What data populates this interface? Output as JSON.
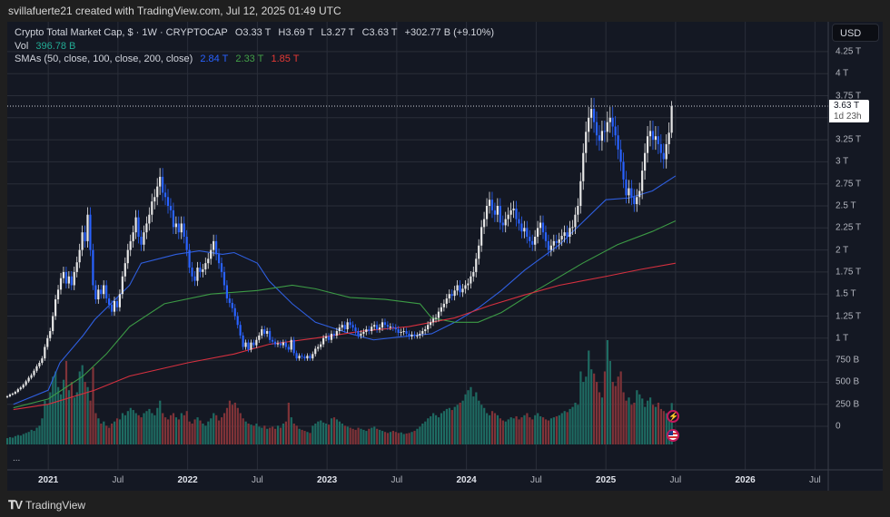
{
  "header": {
    "attribution": "svillafuerte21 created with TradingView.com, Jul 12, 2025 01:49 UTC"
  },
  "legend": {
    "symbol": "Crypto Total Market Cap, $ · 1W · CRYPTOCAP",
    "open": "O3.33 T",
    "high": "H3.69 T",
    "low": "L3.27 T",
    "close": "C3.63 T",
    "change": "+302.77 B (+9.10%)",
    "vol_label": "Vol",
    "vol_value": "396.78 B",
    "sma_label": "SMAs (50, close, 100, close, 200, close)",
    "sma50": "2.84 T",
    "sma100": "2.33 T",
    "sma200": "1.85 T"
  },
  "currency_button": "USD",
  "price_label": {
    "value": "3.63 T",
    "countdown": "1d 23h"
  },
  "pane_menu": "...",
  "brand": "TradingView",
  "colors": {
    "up": "#e6e6e6",
    "down": "#2962ff",
    "vol_up": "#1e6b62",
    "vol_down": "#7f3338",
    "sma50": "#2f5fe0",
    "sma100": "#3c9a45",
    "sma200": "#d6303f",
    "background": "#141823",
    "grid": "#2a2e39"
  },
  "icons": {
    "event_1": "lightning-icon",
    "event_2": "us-flag-icon"
  },
  "chart_data": {
    "type": "candlestick",
    "interval": "1W",
    "y_axis_ticks": [
      "4.25 T",
      "4 T",
      "3.75 T",
      "3.25 T",
      "3 T",
      "2.75 T",
      "2.5 T",
      "2.25 T",
      "2 T",
      "1.75 T",
      "1.5 T",
      "1.25 T",
      "1 T",
      "750 B",
      "500 B",
      "250 B",
      "0"
    ],
    "y_axis_tick_values": [
      4.25,
      4,
      3.75,
      3.25,
      3,
      2.75,
      2.5,
      2.25,
      2,
      1.75,
      1.5,
      1.25,
      1,
      0.75,
      0.5,
      0.25,
      0
    ],
    "x_axis_ticks": [
      "2021",
      "Jul",
      "2022",
      "Jul",
      "2023",
      "Jul",
      "2024",
      "Jul",
      "2025",
      "Jul",
      "2026",
      "Jul"
    ],
    "x_axis_tick_dates": [
      "2021-01",
      "2021-07",
      "2022-01",
      "2022-07",
      "2023-01",
      "2023-07",
      "2024-01",
      "2024-07",
      "2025-01",
      "2025-07",
      "2026-01",
      "2026-07"
    ],
    "units": "T USD",
    "weekly_closes": [
      0.34,
      0.36,
      0.37,
      0.39,
      0.42,
      0.44,
      0.47,
      0.51,
      0.55,
      0.58,
      0.63,
      0.68,
      0.72,
      0.77,
      0.9,
      1.0,
      1.08,
      1.25,
      1.44,
      1.55,
      1.68,
      1.75,
      1.62,
      1.7,
      1.6,
      1.75,
      1.86,
      2.0,
      2.2,
      2.1,
      2.4,
      2.0,
      1.6,
      1.44,
      1.55,
      1.5,
      1.6,
      1.45,
      1.38,
      1.3,
      1.42,
      1.35,
      1.5,
      1.7,
      1.85,
      2.0,
      2.1,
      2.2,
      2.37,
      2.15,
      2.06,
      2.2,
      2.3,
      2.4,
      2.55,
      2.6,
      2.72,
      2.83,
      2.65,
      2.6,
      2.5,
      2.45,
      2.26,
      2.3,
      2.2,
      2.3,
      2.15,
      2.0,
      1.8,
      1.7,
      1.65,
      1.8,
      1.75,
      1.78,
      1.85,
      1.9,
      2.0,
      2.1,
      1.95,
      1.85,
      1.75,
      1.6,
      1.45,
      1.4,
      1.34,
      1.25,
      1.15,
      1.03,
      0.9,
      0.95,
      0.87,
      0.95,
      0.92,
      0.98,
      1.03,
      1.1,
      1.05,
      1.08,
      0.98,
      0.96,
      0.93,
      0.94,
      0.92,
      0.95,
      0.9,
      0.87,
      0.98,
      0.83,
      0.77,
      0.8,
      0.79,
      0.77,
      0.8,
      0.77,
      0.82,
      0.88,
      0.9,
      0.93,
      1.0,
      1.02,
      0.98,
      1.05,
      1.03,
      1.08,
      1.12,
      1.15,
      1.1,
      1.18,
      1.15,
      1.12,
      1.08,
      1.03,
      1.05,
      1.07,
      1.1,
      1.08,
      1.13,
      1.15,
      1.1,
      1.12,
      1.18,
      1.15,
      1.13,
      1.13,
      1.12,
      1.1,
      1.06,
      1.07,
      1.08,
      1.05,
      1.02,
      1.04,
      1.03,
      1.03,
      1.05,
      1.08,
      1.1,
      1.15,
      1.18,
      1.22,
      1.23,
      1.3,
      1.35,
      1.39,
      1.45,
      1.5,
      1.48,
      1.54,
      1.6,
      1.52,
      1.56,
      1.6,
      1.62,
      1.7,
      1.75,
      1.9,
      2.05,
      2.26,
      2.35,
      2.5,
      2.57,
      2.45,
      2.4,
      2.5,
      2.31,
      2.28,
      2.35,
      2.4,
      2.45,
      2.47,
      2.35,
      2.3,
      2.21,
      2.25,
      2.15,
      2.1,
      2.06,
      2.15,
      2.25,
      2.31,
      2.2,
      2.1,
      2.0,
      2.05,
      2.1,
      2.08,
      2.12,
      2.16,
      2.2,
      2.15,
      2.25,
      2.26,
      2.4,
      2.5,
      2.78,
      3.1,
      3.34,
      3.5,
      3.6,
      3.45,
      3.3,
      3.24,
      3.35,
      3.34,
      3.45,
      3.5,
      3.4,
      3.3,
      3.14,
      3.0,
      2.8,
      2.62,
      2.7,
      2.6,
      2.52,
      2.6,
      2.67,
      2.9,
      3.1,
      3.29,
      3.35,
      3.25,
      3.29,
      3.2,
      3.1,
      3.03,
      3.2,
      3.33,
      3.63
    ],
    "last_candle": {
      "open": 3.33,
      "high": 3.69,
      "low": 3.27,
      "close": 3.63
    },
    "weekly_volumes_B": [
      60,
      70,
      65,
      80,
      90,
      85,
      100,
      110,
      120,
      140,
      130,
      160,
      180,
      250,
      420,
      380,
      500,
      650,
      700,
      550,
      480,
      620,
      800,
      520,
      600,
      450,
      500,
      700,
      760,
      600,
      550,
      420,
      740,
      300,
      250,
      200,
      220,
      180,
      160,
      200,
      220,
      250,
      240,
      300,
      280,
      320,
      350,
      330,
      300,
      280,
      260,
      300,
      320,
      340,
      300,
      280,
      350,
      420,
      300,
      260,
      240,
      280,
      300,
      260,
      240,
      300,
      280,
      320,
      220,
      200,
      240,
      260,
      230,
      200,
      180,
      220,
      250,
      300,
      280,
      230,
      260,
      300,
      350,
      420,
      380,
      400,
      350,
      300,
      250,
      220,
      200,
      190,
      180,
      200,
      170,
      160,
      180,
      150,
      160,
      170,
      150,
      180,
      160,
      200,
      220,
      400,
      260,
      200,
      180,
      150,
      140,
      130,
      120,
      110,
      180,
      200,
      220,
      230,
      210,
      200,
      190,
      250,
      260,
      240,
      220,
      200,
      180,
      170,
      160,
      150,
      140,
      160,
      150,
      140,
      130,
      150,
      160,
      170,
      150,
      140,
      130,
      120,
      110,
      120,
      130,
      120,
      110,
      115,
      100,
      105,
      110,
      120,
      130,
      150,
      170,
      200,
      220,
      250,
      270,
      300,
      280,
      260,
      300,
      320,
      340,
      350,
      330,
      360,
      380,
      400,
      420,
      480,
      520,
      550,
      460,
      500,
      420,
      380,
      350,
      300,
      280,
      320,
      300,
      280,
      250,
      230,
      220,
      240,
      260,
      250,
      270,
      240,
      260,
      280,
      300,
      260,
      240,
      280,
      300,
      270,
      260,
      240,
      230,
      250,
      260,
      270,
      280,
      300,
      320,
      310,
      340,
      360,
      400,
      380,
      700,
      600,
      650,
      900,
      720,
      680,
      600,
      500,
      450,
      700,
      1000,
      800,
      600,
      560,
      650,
      700,
      500,
      420,
      450,
      380,
      400,
      520,
      480,
      440,
      360,
      420,
      450,
      380,
      360,
      400,
      340,
      320,
      300,
      260,
      396.78
    ],
    "sma": [
      {
        "name": "SMA 50",
        "color": "#2f5fe0",
        "points": [
          [
            "2020-10",
            0.25
          ],
          [
            "2021-01",
            0.41
          ],
          [
            "2021-02",
            0.72
          ],
          [
            "2021-04",
            1.03
          ],
          [
            "2021-05",
            1.21
          ],
          [
            "2021-08",
            1.6
          ],
          [
            "2021-09",
            1.85
          ],
          [
            "2021-12",
            1.95
          ],
          [
            "2022-02",
            1.99
          ],
          [
            "2022-04",
            1.95
          ],
          [
            "2022-05",
            1.97
          ],
          [
            "2022-07",
            1.85
          ],
          [
            "2022-08",
            1.65
          ],
          [
            "2022-10",
            1.39
          ],
          [
            "2022-12",
            1.18
          ],
          [
            "2023-03",
            1.05
          ],
          [
            "2023-05",
            0.98
          ],
          [
            "2023-07",
            1.01
          ],
          [
            "2023-10",
            1.05
          ],
          [
            "2023-12",
            1.18
          ],
          [
            "2024-02",
            1.34
          ],
          [
            "2024-04",
            1.54
          ],
          [
            "2024-06",
            1.77
          ],
          [
            "2024-09",
            2.06
          ],
          [
            "2025-01",
            2.57
          ],
          [
            "2025-03",
            2.59
          ],
          [
            "2025-05",
            2.67
          ],
          [
            "2025-07",
            2.84
          ]
        ]
      },
      {
        "name": "SMA 100",
        "color": "#3c9a45",
        "points": [
          [
            "2020-10",
            0.21
          ],
          [
            "2021-01",
            0.31
          ],
          [
            "2021-04",
            0.57
          ],
          [
            "2021-06",
            0.82
          ],
          [
            "2021-08",
            1.13
          ],
          [
            "2021-11",
            1.39
          ],
          [
            "2022-03",
            1.5
          ],
          [
            "2022-07",
            1.54
          ],
          [
            "2022-10",
            1.6
          ],
          [
            "2022-12",
            1.56
          ],
          [
            "2023-03",
            1.46
          ],
          [
            "2023-06",
            1.44
          ],
          [
            "2023-09",
            1.39
          ],
          [
            "2023-10",
            1.23
          ],
          [
            "2023-12",
            1.18
          ],
          [
            "2024-02",
            1.18
          ],
          [
            "2024-04",
            1.29
          ],
          [
            "2024-07",
            1.54
          ],
          [
            "2024-11",
            1.85
          ],
          [
            "2025-02",
            2.06
          ],
          [
            "2025-05",
            2.21
          ],
          [
            "2025-07",
            2.33
          ]
        ]
      },
      {
        "name": "SMA 200",
        "color": "#d6303f",
        "points": [
          [
            "2020-10",
            0.19
          ],
          [
            "2021-01",
            0.25
          ],
          [
            "2021-05",
            0.41
          ],
          [
            "2021-08",
            0.57
          ],
          [
            "2022-01",
            0.72
          ],
          [
            "2022-05",
            0.82
          ],
          [
            "2022-08",
            0.93
          ],
          [
            "2022-12",
            1.0
          ],
          [
            "2023-04",
            1.08
          ],
          [
            "2023-08",
            1.13
          ],
          [
            "2023-12",
            1.23
          ],
          [
            "2024-03",
            1.37
          ],
          [
            "2024-06",
            1.49
          ],
          [
            "2024-09",
            1.6
          ],
          [
            "2025-01",
            1.7
          ],
          [
            "2025-04",
            1.78
          ],
          [
            "2025-07",
            1.85
          ]
        ]
      }
    ]
  }
}
